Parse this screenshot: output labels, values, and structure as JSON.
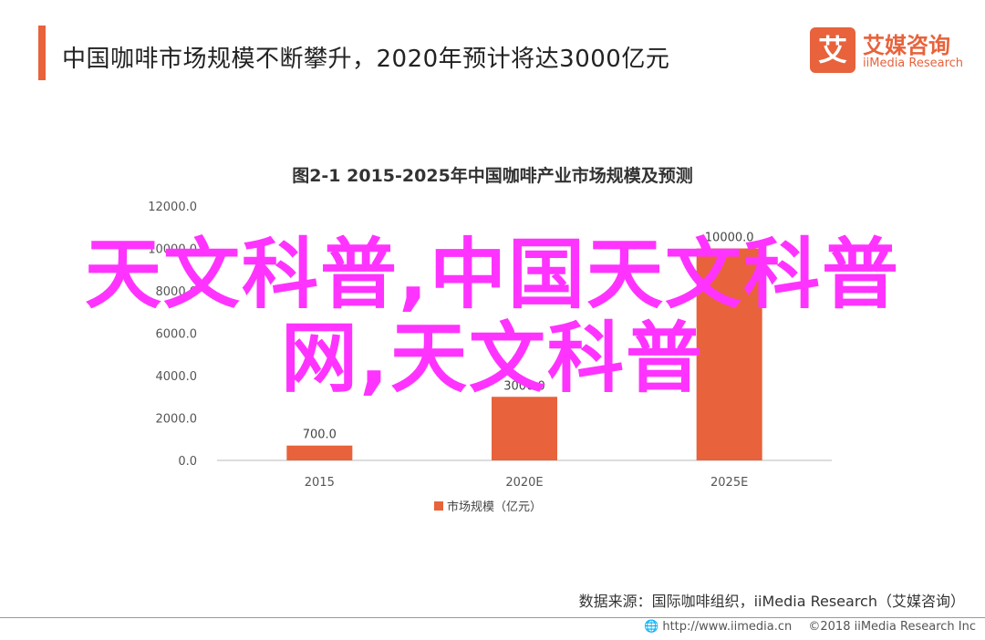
{
  "header": {
    "headline": "中国咖啡市场规模不断攀升，2020年预计将达3000亿元",
    "logo_mark": "艾",
    "logo_cn": "艾媒咨询",
    "logo_en": "iiMedia Research",
    "accent_color": "#e8623b"
  },
  "chart_data": {
    "type": "bar",
    "title": "图2-1 2015-2025年中国咖啡产业市场规模及预测",
    "categories": [
      "2015",
      "2020E",
      "2025E"
    ],
    "series": [
      {
        "name": "市场规模（亿元）",
        "values": [
          700.0,
          3000.0,
          10000.0
        ],
        "color": "#e8623b"
      }
    ],
    "data_labels": [
      "700.0",
      "3000.0",
      "10000.0"
    ],
    "ylim": [
      0,
      12000
    ],
    "yticks": [
      "0.0",
      "2000.0",
      "4000.0",
      "6000.0",
      "8000.0",
      "10000.0",
      "12000.0"
    ],
    "legend": "bottom",
    "grid": false
  },
  "source": "数据来源：国际咖啡组织，iiMedia Research（艾媒咨询）",
  "footer": {
    "url": "http://www.iimedia.cn",
    "copyright": "©2018  iiMedia Research  Inc"
  },
  "watermark": {
    "line1": "天文科普,中国天文科普",
    "line2": "网,天文科普"
  }
}
